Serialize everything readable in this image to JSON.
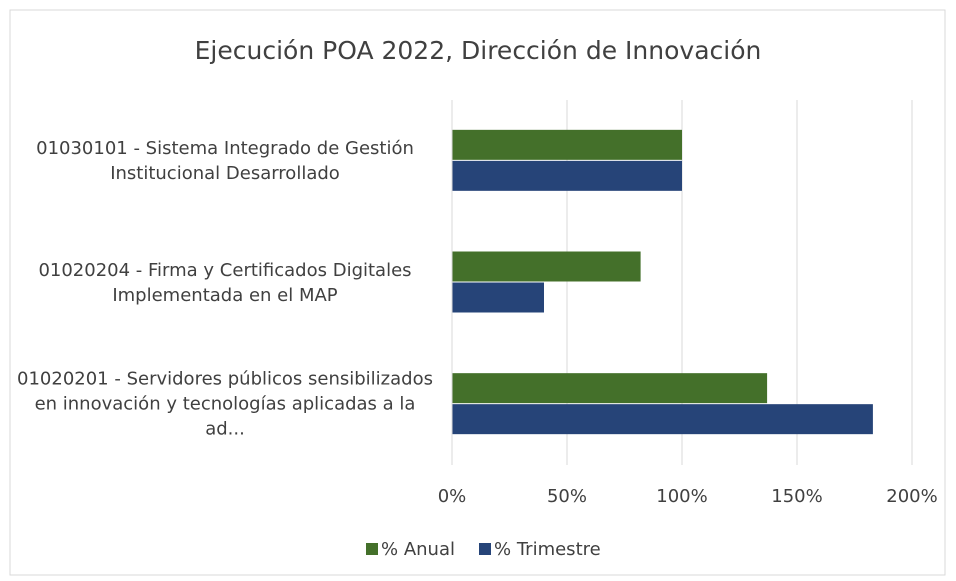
{
  "chart_data": {
    "type": "barh",
    "title": "Ejecución POA 2022, Dirección de Innovación",
    "categories": [
      "01030101 - Sistema Integrado de Gestión Institucional Desarrollado",
      "01020204 - Firma y Certificados Digitales Implementada en el MAP",
      "01020201 - Servidores públicos sensibilizados en innovación y tecnologías aplicadas a la ad..."
    ],
    "series": [
      {
        "name": "% Anual",
        "color": "#44702a",
        "values": [
          100,
          82,
          137
        ]
      },
      {
        "name": "% Trimestre",
        "color": "#264478",
        "values": [
          100,
          40,
          183
        ]
      }
    ],
    "xlim": [
      0,
      200
    ],
    "xticks": [
      {
        "value": 0,
        "label": "0%"
      },
      {
        "value": 50,
        "label": "50%"
      },
      {
        "value": 100,
        "label": "100%"
      },
      {
        "value": 150,
        "label": "150%"
      },
      {
        "value": 200,
        "label": "200%"
      }
    ],
    "grid": true,
    "legend": "bottom"
  }
}
